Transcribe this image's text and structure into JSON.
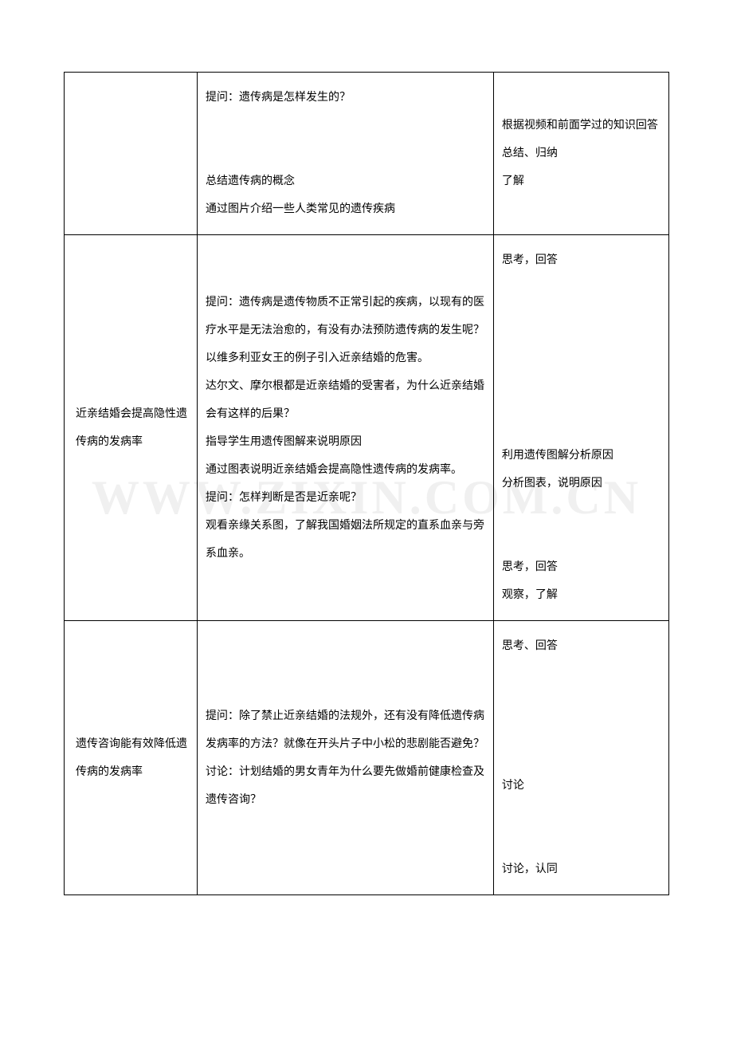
{
  "watermark": "WWW.ZIXIN.COM.CN",
  "table": {
    "border_color": "#000000",
    "background_color": "#ffffff",
    "text_color": "#000000",
    "font_size": 14,
    "line_height": 2.5,
    "columns": [
      {
        "width_pct": 22
      },
      {
        "width_pct": 49
      },
      {
        "width_pct": 29
      }
    ],
    "rows": [
      {
        "col1": "",
        "col2": "提问：遗传病是怎样发生的？\n\n总结遗传病的概念\n通过图片介绍一些人类常见的遗传疾病",
        "col3": "根据视频和前面学过的知识回答\n总结、归纳\n了解"
      },
      {
        "col1": "近亲结婚会提高隐性遗传病的发病率",
        "col2": "提问：遗传病是遗传物质不正常引起的疾病，以现有的医疗水平是无法治愈的，有没有办法预防遗传病的发生呢？\n以维多利亚女王的例子引入近亲结婚的危害。\n达尔文、摩尔根都是近亲结婚的受害者，为什么近亲结婚会有这样的后果？\n指导学生用遗传图解来说明原因\n通过图表说明近亲结婚会提高隐性遗传病的发病率。\n提问：怎样判断是否是近亲呢？\n观看亲缘关系图，了解我国婚姻法所规定的直系血亲与旁系血亲。",
        "col3": "思考，回答\n\n\n\n利用遗传图解分析原因\n分析图表，说明原因\n\n思考，回答\n观察，了解"
      },
      {
        "col1": "遗传咨询能有效降低遗传病的发病率",
        "col2": "提问：除了禁止近亲结婚的法规外，还有没有降低遗传病发病率的方法？就像在开头片子中小松的悲剧能否避免？\n讨论：计划结婚的男女青年为什么要先做婚前健康检查及遗传咨询？",
        "col3": "思考、回答\n\n\n讨论\n\n讨论，认同"
      }
    ]
  }
}
